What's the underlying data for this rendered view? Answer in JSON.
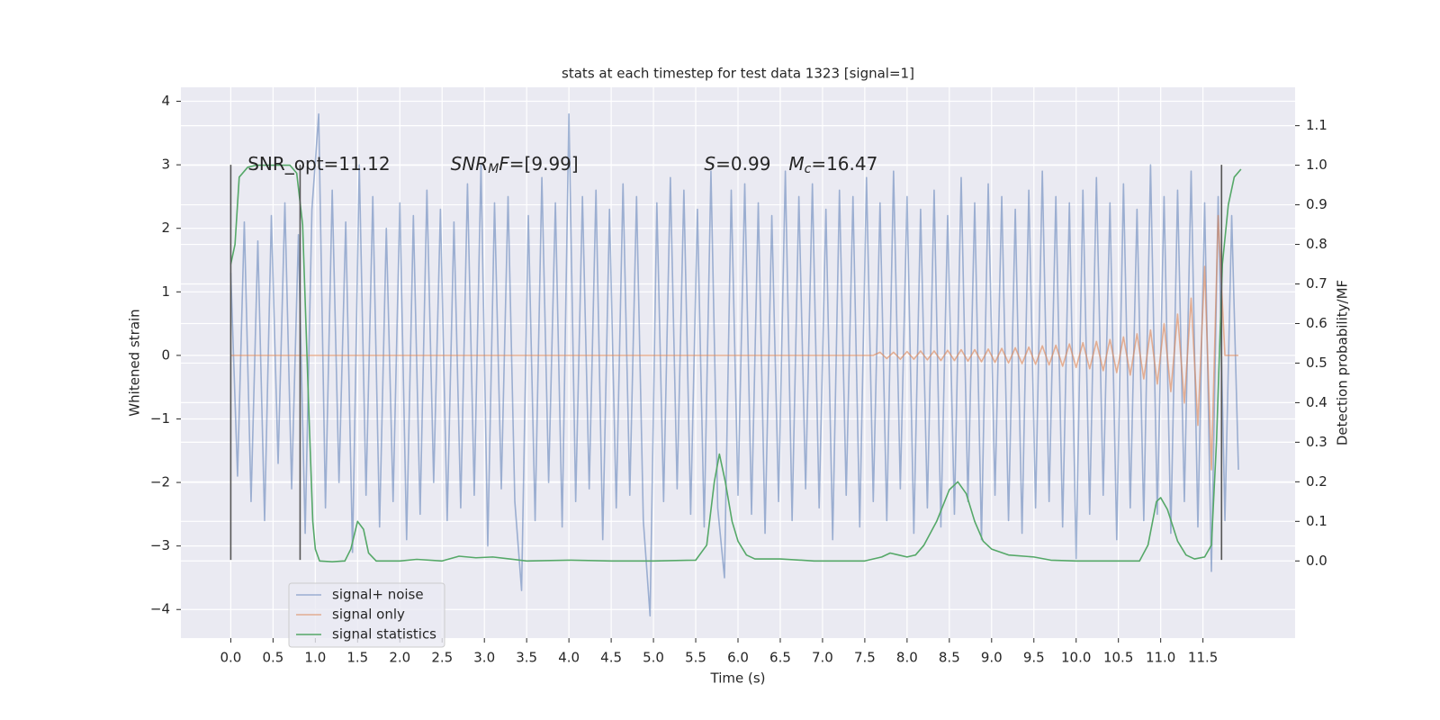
{
  "chart_data": {
    "type": "line",
    "title": "stats at each timestep for test data 1323 [signal=1]",
    "xlabel": "Time (s)",
    "ylabel": "Whitened strain",
    "y2label": "Detection probability/MF",
    "xlim": [
      -0.59,
      12.59
    ],
    "ylim": [
      -4.45,
      4.22
    ],
    "y2lim": [
      -0.195,
      1.197
    ],
    "xticks": [
      {
        "value": 0,
        "label": "0.0"
      },
      0.5,
      {
        "value": 1,
        "label": "1.0"
      },
      1.5,
      {
        "value": 2,
        "label": "2.0"
      },
      2.5,
      {
        "value": 3,
        "label": "3.0"
      },
      3.5,
      {
        "value": 4,
        "label": "4.0"
      },
      4.5,
      {
        "value": 5,
        "label": "5.0"
      },
      5.5,
      {
        "value": 6,
        "label": "6.0"
      },
      6.5,
      {
        "value": 7,
        "label": "7.0"
      },
      7.5,
      {
        "value": 8,
        "label": "8.0"
      },
      8.5,
      {
        "value": 9,
        "label": "9.0"
      },
      9.5,
      {
        "value": 10,
        "label": "10.0"
      },
      10.5,
      {
        "value": 11,
        "label": "11.0"
      },
      11.5
    ],
    "yticks": [
      {
        "value": -4,
        "label": "−4"
      },
      {
        "value": -3,
        "label": "−3"
      },
      {
        "value": -2,
        "label": "−2"
      },
      {
        "value": -1,
        "label": "−1"
      },
      0,
      1,
      2,
      3,
      4
    ],
    "y2ticks": [
      {
        "value": 0,
        "label": "0.0"
      },
      0.1,
      0.2,
      0.3,
      0.4,
      0.5,
      0.6,
      0.7,
      0.8,
      0.9,
      {
        "value": 1,
        "label": "1.0"
      },
      1.1
    ],
    "grid": true,
    "legend": "lower left",
    "x": [
      0,
      0.08,
      0.16,
      0.24,
      0.32,
      0.4,
      0.48,
      0.56,
      0.64,
      0.72,
      0.8,
      0.88,
      0.96,
      1.04,
      1.12,
      1.2,
      1.28,
      1.36,
      1.44,
      1.52,
      1.6,
      1.68,
      1.76,
      1.84,
      1.92,
      2,
      2.08,
      2.16,
      2.24,
      2.32,
      2.4,
      2.48,
      2.56,
      2.64,
      2.72,
      2.8,
      2.88,
      2.96,
      3.04,
      3.12,
      3.2,
      3.28,
      3.36,
      3.44,
      3.52,
      3.6,
      3.68,
      3.76,
      3.84,
      3.92,
      4,
      4.08,
      4.16,
      4.24,
      4.32,
      4.4,
      4.48,
      4.56,
      4.64,
      4.72,
      4.8,
      4.88,
      4.96,
      5.04,
      5.12,
      5.2,
      5.28,
      5.36,
      5.44,
      5.52,
      5.6,
      5.68,
      5.76,
      5.84,
      5.92,
      6,
      6.08,
      6.16,
      6.24,
      6.32,
      6.4,
      6.48,
      6.56,
      6.64,
      6.72,
      6.8,
      6.88,
      6.96,
      7.04,
      7.12,
      7.2,
      7.28,
      7.36,
      7.44,
      7.52,
      7.6,
      7.68,
      7.76,
      7.84,
      7.92,
      8,
      8.08,
      8.16,
      8.24,
      8.32,
      8.4,
      8.48,
      8.56,
      8.64,
      8.72,
      8.8,
      8.88,
      8.96,
      9.04,
      9.12,
      9.2,
      9.28,
      9.36,
      9.44,
      9.52,
      9.6,
      9.68,
      9.76,
      9.84,
      9.92,
      10,
      10.08,
      10.16,
      10.24,
      10.32,
      10.4,
      10.48,
      10.56,
      10.64,
      10.72,
      10.8,
      10.88,
      10.96,
      11.04,
      11.12,
      11.2,
      11.28,
      11.36,
      11.44,
      11.52,
      11.6,
      11.68,
      11.76,
      11.84,
      11.92
    ],
    "series": [
      {
        "name": "signal+ noise",
        "color": "#4c72b0",
        "opacity": 0.5,
        "values": [
          1.3,
          -1.9,
          2.1,
          -2.3,
          1.8,
          -2.6,
          2.2,
          -1.7,
          2.4,
          -2.1,
          1.9,
          -2.8,
          2.3,
          3.8,
          -2.4,
          2.6,
          -2.0,
          2.1,
          -3.1,
          3.0,
          -2.2,
          2.5,
          -2.7,
          2.0,
          -2.3,
          2.4,
          -2.9,
          2.2,
          -2.5,
          2.6,
          -2.0,
          2.3,
          -2.6,
          2.1,
          -2.4,
          2.7,
          -2.2,
          3.0,
          -3.0,
          2.4,
          -2.1,
          2.5,
          -2.3,
          -3.7,
          2.2,
          -2.6,
          2.8,
          -2.0,
          2.4,
          -2.7,
          3.8,
          -2.3,
          2.5,
          -2.1,
          2.6,
          -2.9,
          2.3,
          -2.4,
          2.7,
          -2.2,
          2.5,
          -2.6,
          -4.1,
          2.4,
          -2.3,
          2.8,
          -2.1,
          2.6,
          -2.5,
          2.3,
          -2.7,
          2.9,
          -2.4,
          -3.5,
          2.6,
          -2.2,
          2.7,
          -2.5,
          2.4,
          -2.8,
          2.2,
          -2.3,
          2.9,
          -2.6,
          2.5,
          -2.1,
          2.7,
          -2.4,
          2.3,
          -2.9,
          2.6,
          -2.2,
          2.5,
          -2.7,
          2.8,
          -2.3,
          2.4,
          -2.6,
          2.9,
          -2.1,
          2.5,
          -2.8,
          2.3,
          -2.4,
          2.6,
          -2.7,
          2.2,
          -2.5,
          2.8,
          -2.3,
          2.4,
          -2.9,
          2.7,
          -2.2,
          2.5,
          -2.6,
          2.3,
          -2.8,
          2.6,
          -2.4,
          2.9,
          -2.3,
          2.5,
          -2.7,
          2.4,
          -3.2,
          2.6,
          -2.5,
          2.8,
          -2.2,
          2.4,
          -2.9,
          2.7,
          -2.4,
          2.3,
          -2.6,
          3.0,
          -2.5,
          2.5,
          -2.8,
          2.6,
          -2.3,
          2.9,
          -2.7,
          2.4,
          -3.4,
          2.5,
          -2.6,
          2.2,
          -1.8
        ]
      },
      {
        "name": "signal only",
        "color": "#dd8452",
        "opacity": 0.6,
        "values": [
          0,
          0,
          0,
          0,
          0,
          0,
          0,
          0,
          0,
          0,
          0,
          0,
          0,
          0,
          0,
          0,
          0,
          0,
          0,
          0,
          0,
          0,
          0,
          0,
          0,
          0,
          0,
          0,
          0,
          0,
          0,
          0,
          0,
          0,
          0,
          0,
          0,
          0,
          0,
          0,
          0,
          0,
          0,
          0,
          0,
          0,
          0,
          0,
          0,
          0,
          0,
          0,
          0,
          0,
          0,
          0,
          0,
          0,
          0,
          0,
          0,
          0,
          0,
          0,
          0,
          0,
          0,
          0,
          0,
          0,
          0,
          0,
          0,
          0,
          0,
          0,
          0,
          0,
          0,
          0,
          0,
          0,
          0,
          0,
          0,
          0,
          0,
          0,
          0,
          0,
          0,
          0,
          0,
          0,
          0,
          0,
          0.05,
          -0.05,
          0.05,
          -0.06,
          0.06,
          -0.06,
          0.07,
          -0.07,
          0.07,
          -0.08,
          0.08,
          -0.08,
          0.09,
          -0.09,
          0.09,
          -0.1,
          0.1,
          -0.11,
          0.11,
          -0.12,
          0.12,
          -0.13,
          0.13,
          -0.14,
          0.15,
          -0.15,
          0.16,
          -0.17,
          0.18,
          -0.19,
          0.2,
          -0.21,
          0.22,
          -0.24,
          0.25,
          -0.27,
          0.29,
          -0.31,
          0.34,
          -0.37,
          0.4,
          -0.45,
          0.5,
          -0.57,
          0.65,
          -0.75,
          0.9,
          -1.1,
          1.4,
          -1.8,
          2.2,
          0,
          0,
          0
        ]
      },
      {
        "name": "signal statistics",
        "color": "#55a868",
        "opacity": 1,
        "axis": "y2",
        "x": [
          0,
          0.05,
          0.1,
          0.2,
          0.3,
          0.5,
          0.7,
          0.78,
          0.85,
          0.92,
          0.97,
          1,
          1.05,
          1.2,
          1.35,
          1.42,
          1.5,
          1.57,
          1.63,
          1.72,
          2,
          2.2,
          2.5,
          2.7,
          2.9,
          3.1,
          3.3,
          3.5,
          4,
          4.5,
          5,
          5.5,
          5.63,
          5.72,
          5.78,
          5.85,
          5.93,
          6,
          6.1,
          6.2,
          6.5,
          6.9,
          7.5,
          7.7,
          7.8,
          7.9,
          8,
          8.1,
          8.2,
          8.35,
          8.5,
          8.6,
          8.7,
          8.8,
          8.9,
          9,
          9.2,
          9.5,
          9.7,
          10,
          10.5,
          10.75,
          10.85,
          10.95,
          11,
          11.08,
          11.2,
          11.3,
          11.4,
          11.52,
          11.6,
          11.66,
          11.73,
          11.8,
          11.87,
          11.95
        ],
        "values": [
          0.75,
          0.8,
          0.97,
          0.995,
          1,
          1,
          1,
          0.98,
          0.85,
          0.4,
          0.1,
          0.03,
          0,
          -0.002,
          0,
          0.03,
          0.1,
          0.08,
          0.02,
          0,
          0,
          0.004,
          0,
          0.012,
          0.008,
          0.01,
          0.005,
          0,
          0.002,
          0,
          0,
          0.002,
          0.04,
          0.2,
          0.27,
          0.2,
          0.1,
          0.05,
          0.015,
          0.005,
          0.005,
          0,
          0,
          0.01,
          0.02,
          0.015,
          0.01,
          0.015,
          0.04,
          0.1,
          0.18,
          0.2,
          0.17,
          0.1,
          0.05,
          0.03,
          0.015,
          0.01,
          0.002,
          0,
          0,
          0,
          0.04,
          0.15,
          0.16,
          0.13,
          0.05,
          0.015,
          0.005,
          0.01,
          0.04,
          0.3,
          0.75,
          0.9,
          0.97,
          0.99
        ]
      }
    ],
    "vlines": {
      "x": [
        0,
        0.82,
        11.72
      ],
      "ymin": -3.22,
      "ymax": 3.0,
      "color": "#555555"
    },
    "annotations": [
      {
        "x": 0.2,
        "y": 3.0,
        "parts": [
          {
            "text": "SNR_opt=11.12"
          }
        ]
      },
      {
        "x": 2.6,
        "y": 3.0,
        "parts": [
          {
            "text": "SNR",
            "italic": true
          },
          {
            "text": "M",
            "italic": true,
            "sub": true
          },
          {
            "text": "F",
            "italic": true
          },
          {
            "text": "=[9.99]"
          }
        ]
      },
      {
        "x": 5.6,
        "y": 3.0,
        "parts": [
          {
            "text": "S",
            "italic": true
          },
          {
            "text": "=0.99"
          }
        ]
      },
      {
        "x": 6.6,
        "y": 3.0,
        "parts": [
          {
            "text": "M",
            "italic": true
          },
          {
            "text": "c",
            "italic": true,
            "sub": true
          },
          {
            "text": "=16.47"
          }
        ]
      }
    ]
  }
}
